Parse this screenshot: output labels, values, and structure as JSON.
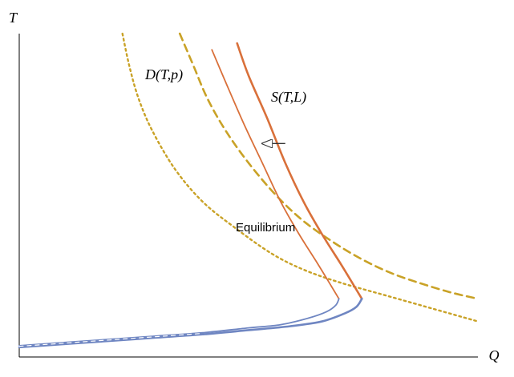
{
  "chart_data": {
    "type": "line",
    "title": "",
    "xlabel": "Q",
    "ylabel": "T",
    "grid": false,
    "xlim": [
      0,
      1
    ],
    "ylim": [
      0,
      1
    ],
    "annotations": {
      "demand": "D(T,p)",
      "supply": "S(T,L)",
      "equilibrium": "Equilibrium"
    },
    "colors": {
      "demand": "#c9a227",
      "supply": "#d9703a",
      "lower_branch": "#6f86c2",
      "arrow": "#333333"
    },
    "series": [
      {
        "role": "demand-dotted",
        "style": "dotted",
        "color": "#c9a227",
        "x": [
          0.225,
          0.24,
          0.26,
          0.29,
          0.34,
          0.4,
          0.47,
          0.55,
          0.62,
          0.7,
          0.8,
          0.9,
          1.0
        ],
        "y": [
          1.0,
          0.9,
          0.8,
          0.7,
          0.58,
          0.48,
          0.4,
          0.32,
          0.27,
          0.23,
          0.19,
          0.15,
          0.11
        ]
      },
      {
        "role": "demand-dashed",
        "style": "dashed",
        "color": "#c9a227",
        "x": [
          0.35,
          0.38,
          0.41,
          0.45,
          0.5,
          0.56,
          0.62,
          0.69,
          0.75,
          0.81,
          0.87,
          0.94,
          1.0
        ],
        "y": [
          1.0,
          0.9,
          0.8,
          0.7,
          0.6,
          0.5,
          0.42,
          0.35,
          0.3,
          0.26,
          0.23,
          0.2,
          0.18
        ]
      },
      {
        "role": "supply-thin",
        "style": "solid",
        "color": "#d9703a",
        "x": [
          0.42,
          0.45,
          0.49,
          0.53,
          0.57,
          0.61,
          0.65,
          0.68,
          0.697
        ],
        "y": [
          0.95,
          0.85,
          0.72,
          0.6,
          0.48,
          0.38,
          0.29,
          0.22,
          0.18
        ]
      },
      {
        "role": "supply-thick",
        "style": "solid",
        "color": "#d9703a",
        "x": [
          0.475,
          0.5,
          0.54,
          0.58,
          0.62,
          0.66,
          0.7,
          0.73,
          0.747
        ],
        "y": [
          0.97,
          0.87,
          0.74,
          0.6,
          0.48,
          0.38,
          0.29,
          0.22,
          0.18
        ]
      },
      {
        "role": "lower-branch-thin",
        "style": "solid",
        "color": "#6f86c2",
        "x": [
          0.0,
          0.1,
          0.2,
          0.3,
          0.4,
          0.5,
          0.57,
          0.63,
          0.67,
          0.69,
          0.697
        ],
        "y": [
          0.035,
          0.045,
          0.055,
          0.065,
          0.075,
          0.09,
          0.1,
          0.12,
          0.14,
          0.16,
          0.18
        ]
      },
      {
        "role": "lower-branch-thick",
        "style": "solid",
        "color": "#6f86c2",
        "x": [
          0.0,
          0.1,
          0.2,
          0.3,
          0.4,
          0.5,
          0.59,
          0.66,
          0.71,
          0.735,
          0.747
        ],
        "y": [
          0.03,
          0.04,
          0.05,
          0.06,
          0.07,
          0.083,
          0.095,
          0.11,
          0.135,
          0.155,
          0.18
        ]
      },
      {
        "role": "lower-branch-dashed",
        "style": "dashed",
        "color": "#ffffff",
        "x": [
          0.0,
          0.1,
          0.2,
          0.3,
          0.4
        ],
        "y": [
          0.033,
          0.043,
          0.053,
          0.063,
          0.073
        ]
      }
    ],
    "shift_arrow": {
      "from": [
        0.58,
        0.66
      ],
      "to": [
        0.53,
        0.66
      ]
    }
  }
}
